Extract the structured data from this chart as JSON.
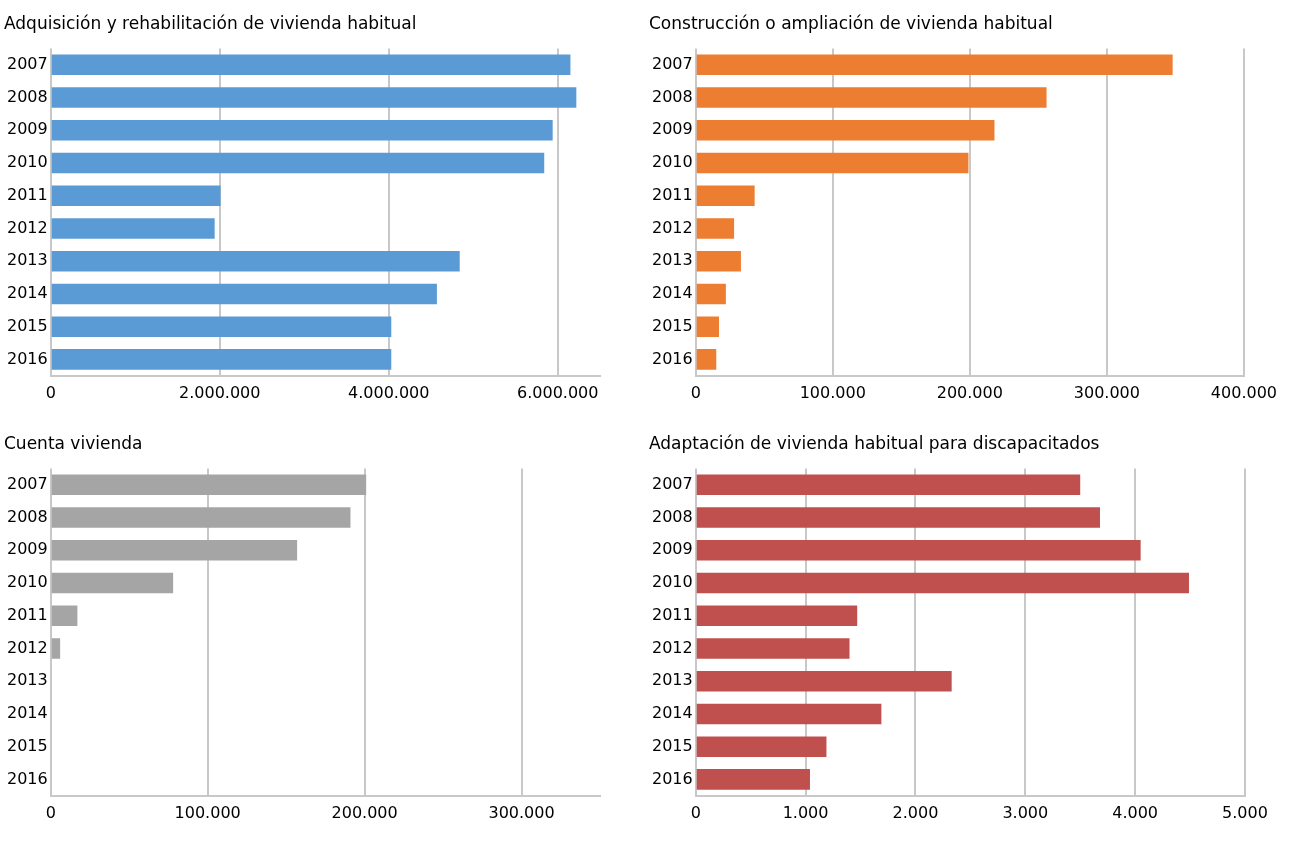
{
  "chart_data": [
    {
      "type": "bar",
      "orientation": "horizontal",
      "title": "Adquisición y rehabilitación de vivienda habitual",
      "categories": [
        "2007",
        "2008",
        "2009",
        "2010",
        "2011",
        "2012",
        "2013",
        "2014",
        "2015",
        "2016"
      ],
      "values": [
        6150000,
        6220000,
        5940000,
        5840000,
        2010000,
        1940000,
        4840000,
        4570000,
        4030000,
        4030000
      ],
      "color": "#5b9bd5",
      "xlim": [
        0,
        6500000
      ],
      "xticks": [
        {
          "value": 0,
          "label": "0"
        },
        {
          "value": 2000000,
          "label": "2.000.000"
        },
        {
          "value": 4000000,
          "label": "4.000.000"
        },
        {
          "value": 6000000,
          "label": "6.000.000"
        }
      ],
      "grid": "x"
    },
    {
      "type": "bar",
      "orientation": "horizontal",
      "title": "Construcción o ampliación de vivienda habitual",
      "categories": [
        "2007",
        "2008",
        "2009",
        "2010",
        "2011",
        "2012",
        "2013",
        "2014",
        "2015",
        "2016"
      ],
      "values": [
        348000,
        256000,
        218000,
        199000,
        43000,
        28000,
        33000,
        22000,
        17000,
        15000
      ],
      "color": "#ed7d31",
      "xlim": [
        0,
        400000
      ],
      "xticks": [
        {
          "value": 0,
          "label": "0"
        },
        {
          "value": 100000,
          "label": "100.000"
        },
        {
          "value": 200000,
          "label": "200.000"
        },
        {
          "value": 300000,
          "label": "300.000"
        },
        {
          "value": 400000,
          "label": "400.000"
        }
      ],
      "grid": "x"
    },
    {
      "type": "bar",
      "orientation": "horizontal",
      "title": "Cuenta vivienda",
      "categories": [
        "2007",
        "2008",
        "2009",
        "2010",
        "2011",
        "2012",
        "2013",
        "2014",
        "2015",
        "2016"
      ],
      "values": [
        201000,
        191000,
        157000,
        78000,
        17000,
        6000,
        0,
        0,
        0,
        0
      ],
      "color": "#a5a5a5",
      "xlim": [
        0,
        350000
      ],
      "xticks": [
        {
          "value": 0,
          "label": "0"
        },
        {
          "value": 100000,
          "label": "100.000"
        },
        {
          "value": 200000,
          "label": "200.000"
        },
        {
          "value": 300000,
          "label": "300.000"
        }
      ],
      "grid": "x"
    },
    {
      "type": "bar",
      "orientation": "horizontal",
      "title": "Adaptación de vivienda habitual para discapacitados",
      "categories": [
        "2007",
        "2008",
        "2009",
        "2010",
        "2011",
        "2012",
        "2013",
        "2014",
        "2015",
        "2016"
      ],
      "values": [
        3500,
        3680,
        4050,
        4490,
        1470,
        1400,
        2330,
        1690,
        1190,
        1040
      ],
      "color": "#c0504d",
      "xlim": [
        0,
        5000
      ],
      "xticks": [
        {
          "value": 0,
          "label": "0"
        },
        {
          "value": 1000,
          "label": "1.000"
        },
        {
          "value": 2000,
          "label": "2.000"
        },
        {
          "value": 3000,
          "label": "3.000"
        },
        {
          "value": 4000,
          "label": "4.000"
        },
        {
          "value": 5000,
          "label": "5.000"
        }
      ],
      "grid": "x"
    }
  ]
}
